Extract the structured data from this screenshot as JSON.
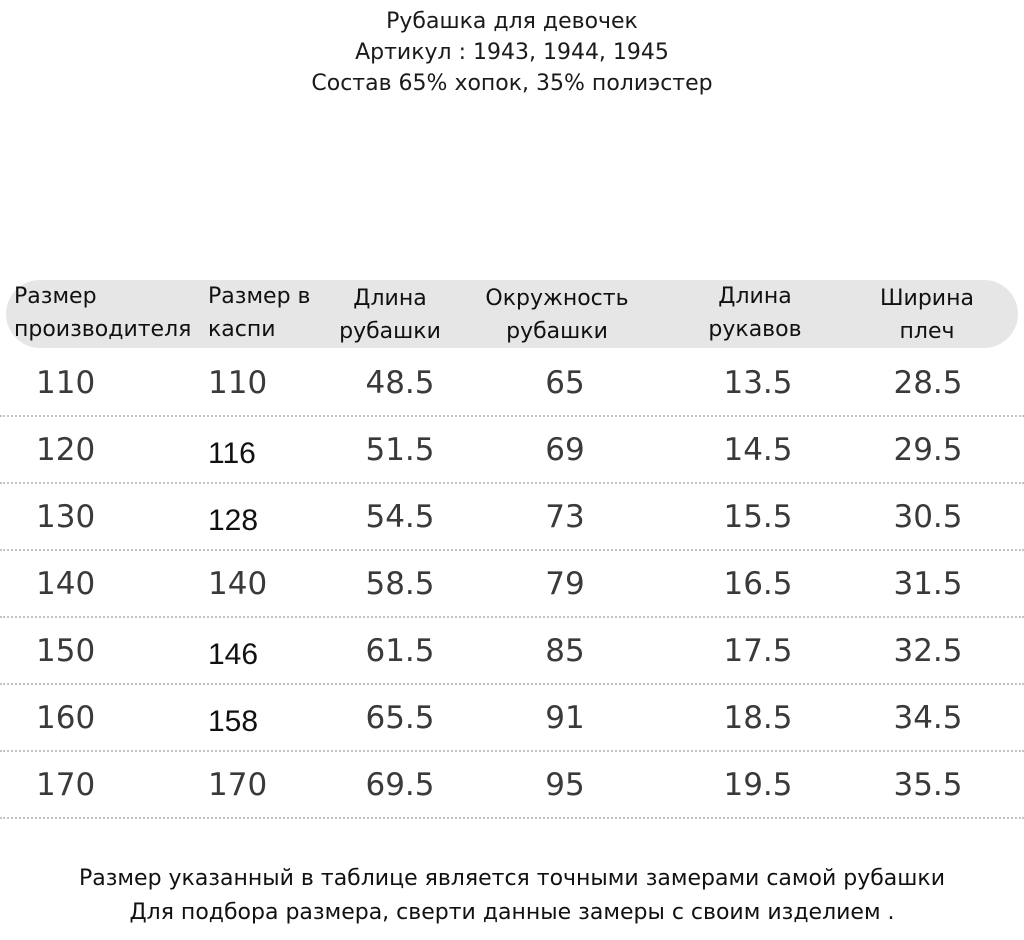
{
  "title": {
    "line1": "Рубашка для девочек",
    "line2": "Артикул : 1943, 1944, 1945",
    "line3": "Состав 65% хопок, 35% полиэстер"
  },
  "table": {
    "headers": [
      [
        "Размер",
        "производителя"
      ],
      [
        "Размер в",
        "каспи"
      ],
      [
        "Длина",
        "рубашки"
      ],
      [
        "Окружность",
        "рубашки"
      ],
      [
        "Длина",
        "рукавов"
      ],
      [
        "Ширина",
        "плеч"
      ]
    ],
    "rows": [
      [
        "110",
        "110",
        "48.5",
        "65",
        "13.5",
        "28.5"
      ],
      [
        "120",
        "116",
        "51.5",
        "69",
        "14.5",
        "29.5"
      ],
      [
        "130",
        "128",
        "54.5",
        "73",
        "15.5",
        "30.5"
      ],
      [
        "140",
        "140",
        "58.5",
        "79",
        "16.5",
        "31.5"
      ],
      [
        "150",
        "146",
        "61.5",
        "85",
        "17.5",
        "32.5"
      ],
      [
        "160",
        "158",
        "65.5",
        "91",
        "18.5",
        "34.5"
      ],
      [
        "170",
        "170",
        "69.5",
        "95",
        "19.5",
        "35.5"
      ]
    ]
  },
  "footer": {
    "line1": "Размер указанный в таблице является точными замерами самой рубашки",
    "line2": "Для подбора размера, сверти данные замеры с своим изделием ."
  }
}
